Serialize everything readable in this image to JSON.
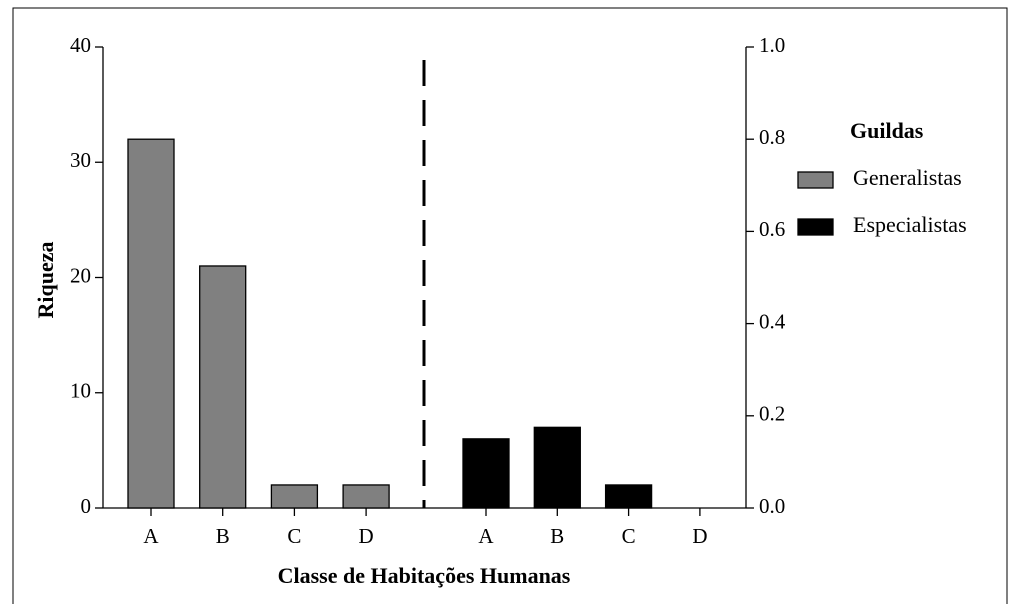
{
  "chart_data": {
    "type": "bar",
    "xlabel": "Classe de Habitações Humanas",
    "ylabel": "Riqueza",
    "legend_title": "Guildas",
    "legend": "right",
    "categories": [
      "A",
      "B",
      "C",
      "D",
      "A",
      "B",
      "C",
      "D"
    ],
    "series": [
      {
        "name": "Generalistas",
        "color": "#808080",
        "values": [
          32,
          21,
          2,
          2,
          null,
          null,
          null,
          null
        ]
      },
      {
        "name": "Especialistas",
        "color": "#000000",
        "values": [
          null,
          null,
          null,
          null,
          6,
          7,
          2,
          0
        ]
      }
    ],
    "ylim": [
      0,
      40
    ],
    "yticks": [
      0,
      10,
      20,
      30,
      40
    ],
    "y2lim": [
      0,
      1
    ],
    "y2ticks": [
      {
        "value": 0,
        "label": "0.0"
      },
      0.2,
      0.4,
      0.6,
      0.8,
      {
        "value": 1,
        "label": "1.0"
      }
    ]
  }
}
